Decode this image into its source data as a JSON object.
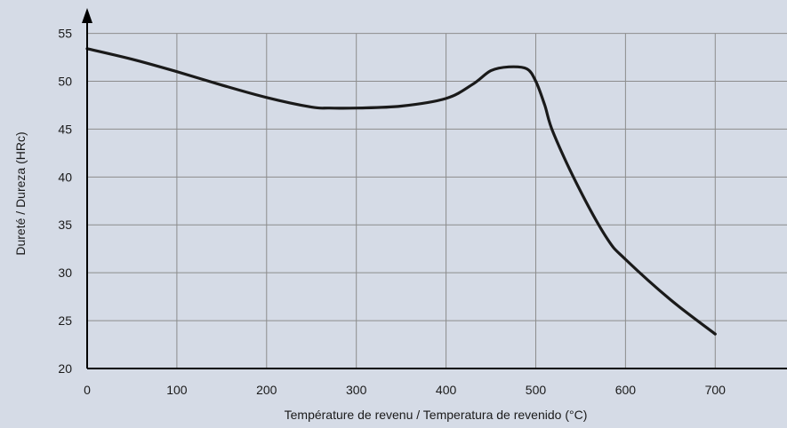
{
  "colors": {
    "background": "#d5dbe6",
    "grid": "#8c8c8c",
    "axis": "#000000",
    "curve": "#1a1a1a"
  },
  "chart_data": {
    "type": "line",
    "xlabel": "Température de revenu / Temperatura de revenido (°C)",
    "ylabel": "Dureté / Dureza (HRc)",
    "xlim": [
      0,
      780
    ],
    "ylim": [
      20,
      57
    ],
    "x_ticks": [
      0,
      100,
      200,
      300,
      400,
      500,
      600,
      700
    ],
    "y_ticks": [
      20,
      25,
      30,
      35,
      40,
      45,
      50,
      55
    ],
    "x_tick_labels": [
      "0",
      "100",
      "200",
      "300",
      "400",
      "500",
      "600",
      "700"
    ],
    "y_tick_labels": [
      "20",
      "25",
      "30",
      "35",
      "40",
      "45",
      "50",
      "55"
    ],
    "grid": true,
    "series": [
      {
        "x": [
          0,
          50,
          100,
          150,
          200,
          250,
          270,
          300,
          350,
          400,
          430,
          450,
          470,
          490,
          500,
          510,
          520,
          550,
          580,
          600,
          650,
          700
        ],
        "y": [
          53.4,
          52.3,
          51.0,
          49.6,
          48.3,
          47.3,
          47.2,
          47.2,
          47.4,
          48.2,
          49.7,
          51.1,
          51.5,
          51.3,
          50.0,
          47.5,
          44.5,
          38.5,
          33.5,
          31.4,
          27.2,
          23.6
        ]
      }
    ]
  }
}
